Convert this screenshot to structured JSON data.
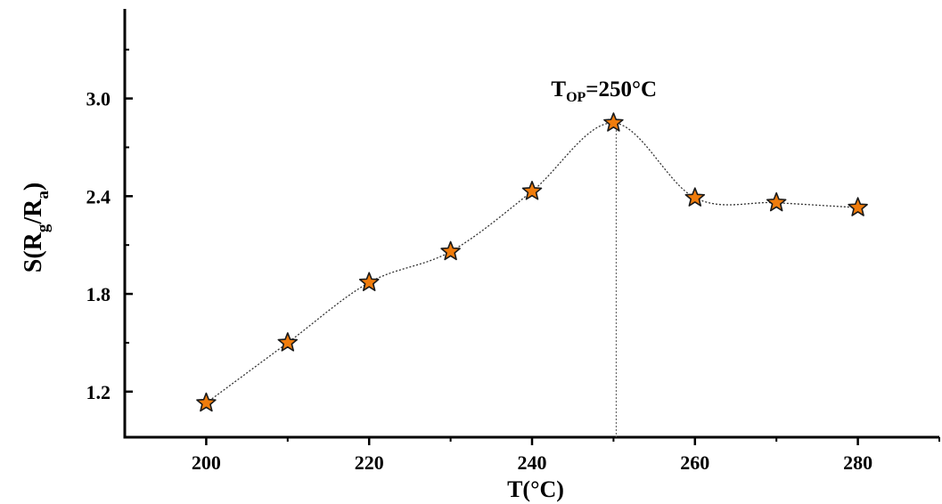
{
  "chart_data": {
    "type": "scatter",
    "title": "",
    "xlabel": "T(°C)",
    "ylabel": "S(Rg/Ra)",
    "ylabel_parts": {
      "prefix": "S(R",
      "sub1": "g",
      "mid": "/R",
      "sub2": "a",
      "suffix": ")"
    },
    "xlim": [
      190,
      290
    ],
    "ylim": [
      0.92,
      3.55
    ],
    "x_ticks": [
      "200",
      "220",
      "240",
      "260",
      "280"
    ],
    "y_ticks": [
      "1.2",
      "1.8",
      "2.4",
      "3.0"
    ],
    "series": [
      {
        "x": [
          200,
          210,
          220,
          230,
          240,
          250,
          260,
          270,
          280
        ],
        "y": [
          1.13,
          1.5,
          1.87,
          2.06,
          2.43,
          2.85,
          2.39,
          2.36,
          2.33
        ]
      }
    ],
    "annotation": {
      "prefix": "T",
      "sub": "OP",
      "suffix": "=250°C",
      "x": 250
    },
    "colors": {
      "marker_fill": "#f07c0c",
      "marker_stroke": "#1a1a1a",
      "line": "#333333",
      "axis": "#000000"
    }
  }
}
